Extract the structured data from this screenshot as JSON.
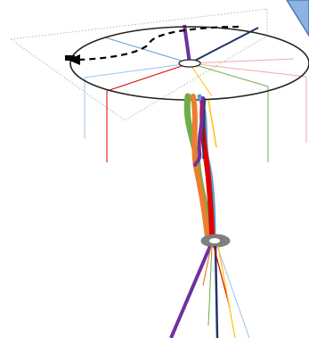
{
  "figure": {
    "description_text": "",
    "colors": {
      "background": "#ffffff",
      "plane_edge": "#b5b5b5",
      "ring": "#222222",
      "arrow": "#000000",
      "big_arrow_fill": "#8db3e2",
      "big_arrow_stroke": "#4a7ab8",
      "lower_ellipse": "#7f7f7f",
      "purple": "#7030a0",
      "navy": "#1f3864",
      "red": "#e00000",
      "orange": "#ed7d31",
      "green": "#70ad47",
      "blue": "#5b9bd5",
      "yellow": "#ffc000",
      "pink": "#f4a7a7",
      "light_blue": "#9dc3e6"
    },
    "strand_colors": [
      "green",
      "orange",
      "purple",
      "blue",
      "red"
    ]
  }
}
